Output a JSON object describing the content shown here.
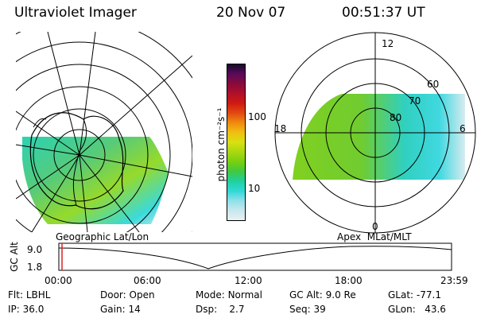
{
  "header": {
    "instrument": "Ultraviolet Imager",
    "date": "20 Nov 07",
    "time": "00:51:37 UT"
  },
  "colorbar": {
    "label": "photon cm⁻²s⁻¹",
    "ticks": [
      "100",
      "10"
    ],
    "scale": "log",
    "colors": [
      "#1a0a2e",
      "#5a0a5a",
      "#8a0a3a",
      "#b0102a",
      "#d01a10",
      "#e24a10",
      "#f08a10",
      "#f0c010",
      "#d8e010",
      "#a8d810",
      "#78d010",
      "#40c840",
      "#20d0a0",
      "#30d8d8",
      "#90e0e8",
      "#c8e8ee",
      "#e8f0f2"
    ]
  },
  "left_panel": {
    "label": "Geographic Lat/Lon"
  },
  "right_panel": {
    "label": "Apex  MLat/MLT",
    "mlt_labels": {
      "top": "12",
      "left": "18",
      "right": "6",
      "bottom": "0"
    },
    "lat_labels": [
      "60",
      "70",
      "80"
    ]
  },
  "altitude_plot": {
    "ylabel": "GC Alt",
    "yticks": [
      "9.0",
      "1.8"
    ],
    "xticks": [
      "00:00",
      "06:00",
      "12:00",
      "18:00",
      "23:59"
    ],
    "marker_color": "#e02020"
  },
  "status": {
    "row1": [
      {
        "k": "Flt:",
        "v": "LBHL"
      },
      {
        "k": "Door:",
        "v": "Open"
      },
      {
        "k": "Mode:",
        "v": "Normal"
      },
      {
        "k": "GC Alt:",
        "v": "9.0 Re"
      },
      {
        "k": "GLat:",
        "v": "-77.1"
      }
    ],
    "row2": [
      {
        "k": "IP:",
        "v": "36.0"
      },
      {
        "k": "Gain:",
        "v": "14"
      },
      {
        "k": "Dsp:",
        "v": "2.7"
      },
      {
        "k": "Seq:",
        "v": "39"
      },
      {
        "k": "GLon:",
        "v": "43.6"
      }
    ]
  }
}
